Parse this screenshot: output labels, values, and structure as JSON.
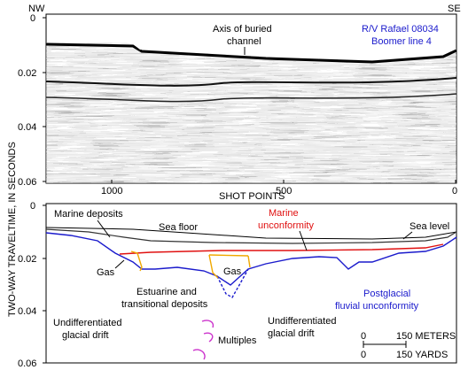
{
  "corners": {
    "left": "NW",
    "right": "SE"
  },
  "vertical_axis_label": "TWO-WAY TRAVELTIME, IN SECONDS",
  "seismic_panel": {
    "title_lines": [
      "R/V Rafael 08034",
      "Boomer line 4"
    ],
    "annotation_lines": [
      "Axis of buried",
      "channel"
    ],
    "y_ticks": [
      "0",
      "0.02",
      "0.04",
      "0.06"
    ],
    "x_ticks": [
      "1000",
      "500",
      "0"
    ],
    "x_axis_label": "SHOT POINTS"
  },
  "interpretation_panel": {
    "y_ticks": [
      "0",
      "0.02",
      "0.04",
      "0.06"
    ],
    "labels": {
      "marine_deposits": "Marine deposits",
      "sea_floor": "Sea floor",
      "marine_unconformity": [
        "Marine",
        "unconformity"
      ],
      "sea_level": "Sea level",
      "gas_left": "Gas",
      "gas_center": "Gas",
      "estuarine": [
        "Estuarine and",
        "transitional deposits"
      ],
      "postglacial": [
        "Postglacial",
        "fluvial unconformity"
      ],
      "drift_left": [
        "Undifferentiated",
        "glacial drift"
      ],
      "drift_right": [
        "Undifferentiated",
        "glacial drift"
      ],
      "multiples": "Multiples"
    },
    "scale_bar": {
      "meters_label": "150 METERS",
      "yards_label": "150 YARDS",
      "zero": "0"
    }
  },
  "colors": {
    "sea_floor": "#000000",
    "marine_unconformity": "#e01010",
    "postglacial_unconformity": "#1a1acc",
    "gas": "#f0a800",
    "multiples": "#cc33cc",
    "sea_level": "#000000"
  }
}
